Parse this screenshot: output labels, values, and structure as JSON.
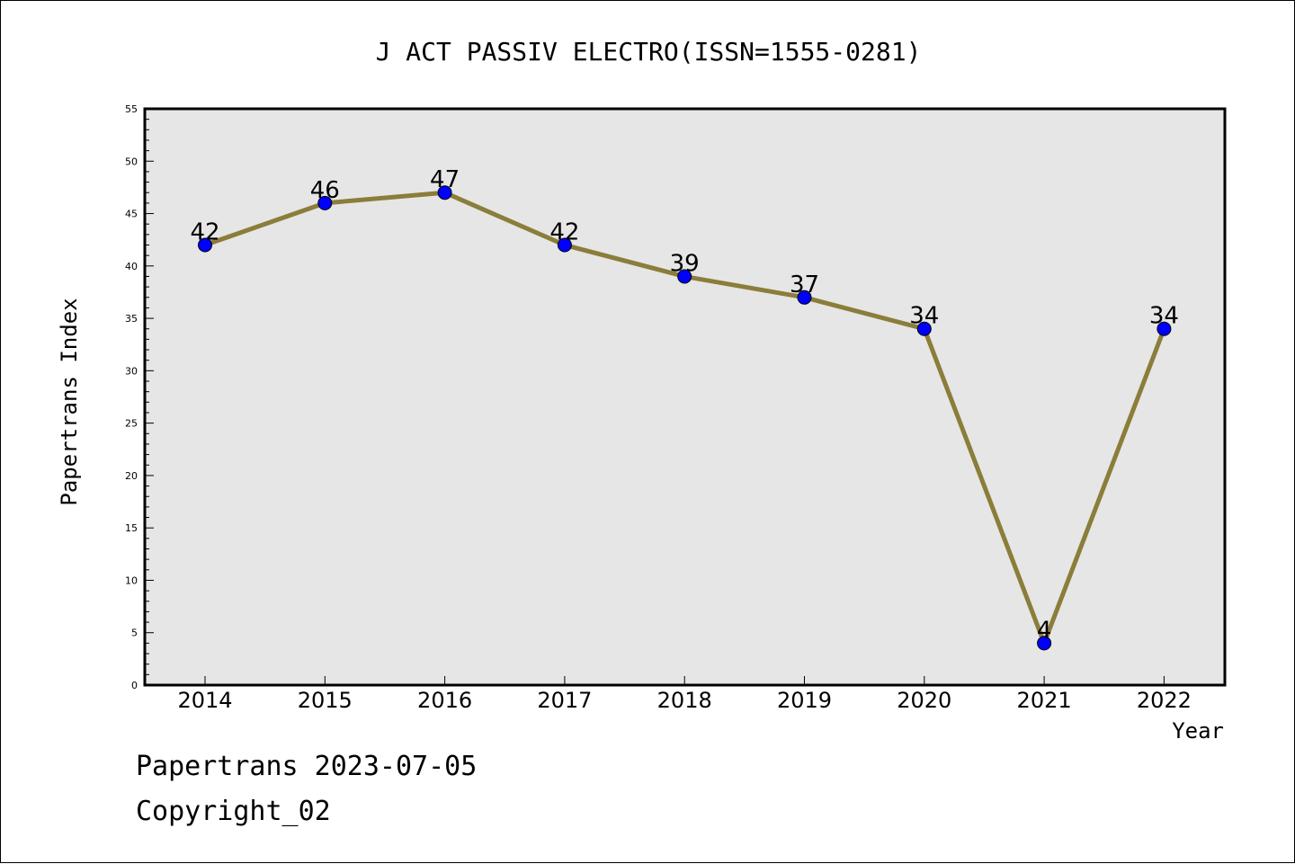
{
  "chart_data": {
    "type": "line",
    "title": "J ACT PASSIV ELECTRO(ISSN=1555-0281)",
    "xlabel": "Year",
    "ylabel": "Papertrans Index",
    "categories": [
      "2014",
      "2015",
      "2016",
      "2017",
      "2018",
      "2019",
      "2020",
      "2021",
      "2022"
    ],
    "values": [
      42,
      46,
      47,
      42,
      39,
      37,
      34,
      4,
      34
    ],
    "ylim": [
      0,
      55
    ],
    "yticks": [
      0,
      5,
      10,
      15,
      20,
      25,
      30,
      35,
      40,
      45,
      50,
      55
    ],
    "grid": false,
    "colors": {
      "line": "#8b7d3a",
      "marker": "#0000ff",
      "plot_background": "#e6e6e6"
    }
  },
  "footer": {
    "stamp": "Papertrans 2023-07-05",
    "copyright": "Copyright_02"
  }
}
